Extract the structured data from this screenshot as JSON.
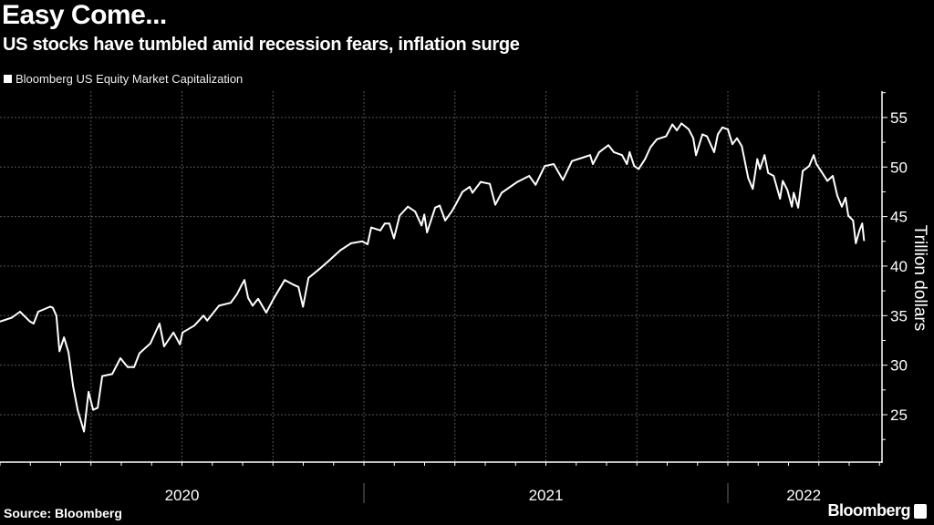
{
  "header": {
    "title": "Easy Come...",
    "subtitle": "US stocks have tumbled amid recession fears, inflation surge"
  },
  "footer": {
    "source": "Source: Bloomberg",
    "logo": "Bloomberg"
  },
  "colors": {
    "background": "#000000",
    "line": "#ffffff",
    "grid": "#555555"
  },
  "chart_data": {
    "type": "line",
    "title": "Easy Come...",
    "subtitle": "US stocks have tumbled amid recession fears, inflation surge",
    "legend": {
      "entries": [
        "Bloomberg US Equity Market Capitalization"
      ],
      "placement": "top-left"
    },
    "xlabel": "",
    "ylabel": "Trillion dollars",
    "x_unit": "months since 2020-01-01",
    "xlim": [
      0,
      29
    ],
    "ylim": [
      22,
      57.5
    ],
    "yticks": [
      25,
      30,
      35,
      40,
      45,
      50,
      55
    ],
    "xtick_labels": [
      {
        "label": "2020",
        "at": 6
      },
      {
        "label": "2021",
        "at": 18
      },
      {
        "label": "2022",
        "at": 26.5
      }
    ],
    "year_separators": [
      12,
      24
    ],
    "grid": true,
    "series": [
      {
        "name": "Bloomberg US Equity Market Capitalization",
        "x": [
          0,
          0.39,
          0.66,
          0.99,
          1.11,
          1.26,
          1.65,
          1.74,
          1.86,
          1.96,
          2.11,
          2.26,
          2.41,
          2.56,
          2.77,
          2.92,
          3.07,
          3.22,
          3.37,
          3.7,
          3.97,
          4.21,
          4.42,
          4.6,
          4.96,
          5.26,
          5.41,
          5.72,
          5.93,
          6.02,
          6.41,
          6.71,
          6.83,
          7.22,
          7.61,
          7.82,
          7.97,
          8.06,
          8.18,
          8.33,
          8.51,
          8.78,
          9.02,
          9.39,
          9.69,
          9.84,
          9.99,
          10.17,
          10.53,
          10.83,
          11.22,
          11.58,
          11.94,
          12.12,
          12.24,
          12.54,
          12.69,
          12.84,
          12.99,
          13.18,
          13.45,
          13.69,
          13.9,
          13.99,
          14.08,
          14.35,
          14.5,
          14.68,
          14.89,
          15.04,
          15.25,
          15.49,
          15.58,
          15.85,
          16.15,
          16.33,
          16.54,
          17.06,
          17.45,
          17.66,
          17.96,
          18.26,
          18.56,
          18.86,
          19.16,
          19.46,
          19.55,
          19.76,
          20.06,
          20.24,
          20.51,
          20.67,
          20.76,
          20.91,
          21.06,
          21.27,
          21.45,
          21.66,
          21.96,
          22.17,
          22.32,
          22.47,
          22.71,
          22.86,
          22.95,
          23.16,
          23.31,
          23.55,
          23.67,
          23.82,
          24.0,
          24.15,
          24.3,
          24.46,
          24.67,
          24.82,
          24.97,
          25.06,
          25.21,
          25.33,
          25.51,
          25.72,
          25.81,
          25.96,
          26.11,
          26.17,
          26.32,
          26.47,
          26.68,
          26.83,
          26.92,
          27.07,
          27.28,
          27.46,
          27.61,
          27.76,
          27.88,
          27.97,
          28.13,
          28.22,
          28.34,
          28.43,
          28.49
        ],
        "y": [
          34.4,
          34.8,
          35.4,
          34.4,
          34.2,
          35.4,
          35.9,
          35.8,
          35.0,
          31.4,
          32.8,
          31.3,
          27.9,
          25.5,
          23.3,
          27.3,
          25.5,
          25.7,
          28.9,
          29.1,
          30.7,
          29.8,
          29.8,
          31.2,
          32.2,
          34.2,
          31.9,
          33.3,
          32.1,
          33.3,
          34.0,
          35.0,
          34.5,
          36.0,
          36.3,
          37.2,
          38.1,
          38.6,
          36.8,
          36.0,
          36.7,
          35.3,
          36.7,
          38.6,
          38.1,
          37.9,
          35.9,
          38.8,
          39.7,
          40.5,
          41.6,
          42.3,
          42.5,
          42.2,
          43.9,
          43.6,
          44.3,
          44.3,
          42.8,
          45.1,
          46.0,
          45.5,
          44.1,
          45.2,
          43.4,
          45.9,
          46.1,
          44.6,
          45.5,
          46.3,
          47.5,
          48.0,
          47.4,
          48.5,
          48.3,
          46.2,
          47.4,
          48.5,
          49.1,
          48.2,
          50.1,
          50.3,
          48.7,
          50.6,
          50.9,
          51.2,
          50.3,
          51.5,
          52.2,
          51.5,
          51.2,
          50.3,
          51.5,
          50.1,
          49.8,
          50.8,
          52.0,
          52.8,
          53.1,
          54.3,
          53.7,
          54.4,
          53.8,
          52.9,
          51.2,
          53.3,
          53.1,
          51.5,
          53.3,
          54.0,
          53.8,
          52.3,
          52.9,
          52.1,
          48.9,
          47.8,
          50.8,
          49.8,
          51.2,
          49.4,
          49.1,
          46.8,
          48.6,
          47.7,
          46.0,
          47.4,
          45.9,
          49.6,
          50.1,
          51.2,
          50.3,
          49.6,
          48.6,
          49.1,
          47.1,
          46.0,
          46.9,
          45.1,
          44.6,
          42.3,
          43.6,
          44.3,
          42.6
        ]
      }
    ]
  }
}
